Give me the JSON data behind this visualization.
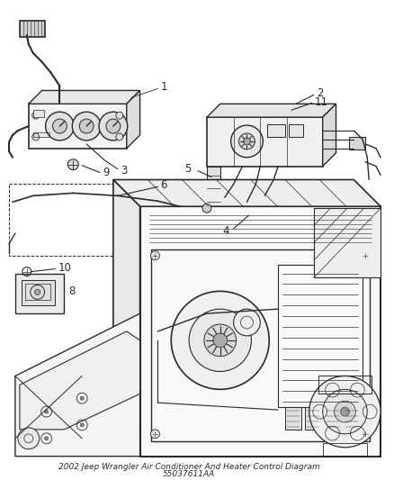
{
  "title": "2002 Jeep Wrangler Air Conditioner And Heater Control Diagram",
  "part_number": "55037611AA",
  "background_color": "#ffffff",
  "line_color": "#2a2a2a",
  "label_color": "#222222",
  "fig_width": 4.38,
  "fig_height": 5.33,
  "dpi": 100,
  "font_size": 8.5,
  "title_font_size": 6.5
}
